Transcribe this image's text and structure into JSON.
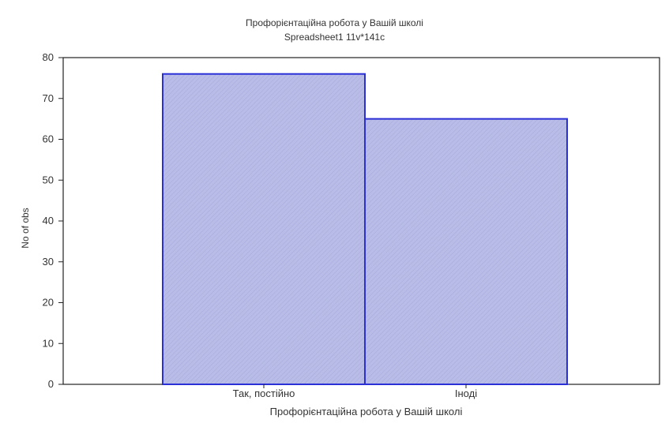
{
  "chart_data": {
    "type": "bar",
    "title": "Профорієнтаційна робота у Вашій школі",
    "subtitle": "Spreadsheet1 11v*141c",
    "xlabel": "Профорієнтаційна робота у Вашій школі",
    "ylabel": "No of obs",
    "categories": [
      "Так, постійно",
      "Іноді"
    ],
    "values": [
      76,
      65
    ],
    "ylim": [
      0,
      80
    ],
    "yticks": [
      0,
      10,
      20,
      30,
      40,
      50,
      60,
      70,
      80
    ],
    "grid": false,
    "legend": "none",
    "bar_fill": "#b8bce6",
    "bar_stroke": "#2b2fd6"
  }
}
